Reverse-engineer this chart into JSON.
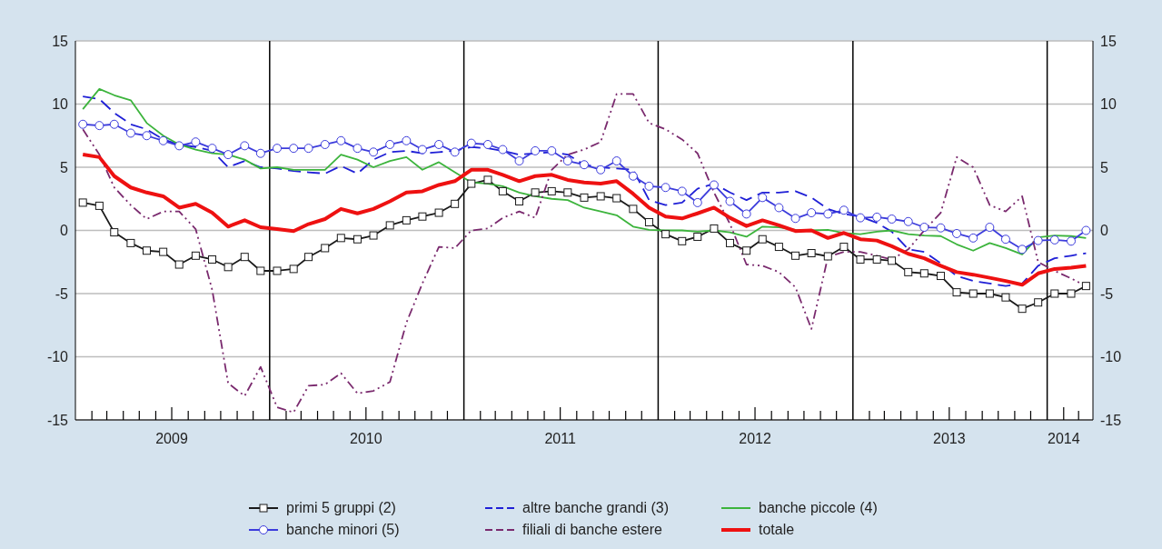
{
  "chart_data": {
    "type": "line",
    "x": [
      "2009-01-15",
      "2009-02-15",
      "2009-03-15",
      "2009-04-15",
      "2009-05-15",
      "2009-06-15",
      "2009-07-15",
      "2009-08-15",
      "2009-09-15",
      "2009-10-15",
      "2009-11-15",
      "2009-12-15",
      "2010-01-15",
      "2010-02-15",
      "2010-03-15",
      "2010-04-15",
      "2010-05-15",
      "2010-06-15",
      "2010-07-15",
      "2010-08-15",
      "2010-09-15",
      "2010-10-15",
      "2010-11-15",
      "2010-12-15",
      "2011-01-15",
      "2011-02-15",
      "2011-03-15",
      "2011-04-15",
      "2011-05-15",
      "2011-06-15",
      "2011-07-15",
      "2011-08-15",
      "2011-09-15",
      "2011-10-15",
      "2011-11-15",
      "2011-12-15",
      "2012-01-15",
      "2012-02-15",
      "2012-03-15",
      "2012-04-15",
      "2012-05-15",
      "2012-06-15",
      "2012-07-15",
      "2012-08-15",
      "2012-09-15",
      "2012-10-15",
      "2012-11-15",
      "2012-12-15",
      "2013-01-15",
      "2013-02-15",
      "2013-03-15",
      "2013-04-15",
      "2013-05-15",
      "2013-06-15",
      "2013-07-15",
      "2013-08-15",
      "2013-09-15",
      "2013-10-15",
      "2013-11-15",
      "2013-12-15",
      "2014-01-15",
      "2014-02-15",
      "2014-03-15"
    ],
    "series": [
      {
        "name": "primi 5 gruppi (2)",
        "color": "#1a1a1a",
        "marker": "square",
        "line_style": "solid",
        "values": [
          2.2,
          1.95,
          -0.15,
          -1.0,
          -1.6,
          -1.7,
          -2.7,
          -2.0,
          -2.3,
          -2.9,
          -2.1,
          -3.2,
          -3.2,
          -3.05,
          -2.1,
          -1.4,
          -0.6,
          -0.7,
          -0.4,
          0.4,
          0.8,
          1.1,
          1.4,
          2.1,
          3.7,
          4.0,
          3.1,
          2.3,
          3.0,
          3.1,
          3.0,
          2.6,
          2.7,
          2.55,
          1.7,
          0.65,
          -0.3,
          -0.85,
          -0.5,
          0.15,
          -1.0,
          -1.6,
          -0.7,
          -1.3,
          -2.0,
          -1.8,
          -2.05,
          -1.3,
          -2.3,
          -2.3,
          -2.4,
          -3.3,
          -3.4,
          -3.6,
          -4.9,
          -5.0,
          -5.0,
          -5.3,
          -6.2,
          -5.7,
          -5.0,
          -5.0,
          -4.4
        ]
      },
      {
        "name": "altre banche grandi (3)",
        "color": "#1f1fd6",
        "marker": "none",
        "line_style": "dashed",
        "values": [
          10.6,
          10.4,
          9.3,
          8.4,
          8.0,
          7.2,
          6.8,
          6.6,
          6.3,
          5.0,
          5.5,
          5.0,
          4.9,
          4.7,
          4.6,
          4.5,
          5.1,
          4.5,
          5.6,
          6.2,
          6.3,
          6.1,
          6.2,
          6.3,
          6.6,
          6.5,
          6.3,
          6.0,
          6.1,
          6.2,
          6.0,
          5.2,
          5.0,
          4.9,
          4.8,
          2.4,
          2.0,
          2.2,
          3.3,
          3.7,
          3.0,
          2.4,
          3.0,
          3.0,
          3.1,
          2.6,
          1.7,
          1.3,
          1.1,
          0.6,
          -0.1,
          -1.5,
          -1.7,
          -2.6,
          -3.6,
          -4.0,
          -4.2,
          -4.4,
          -4.2,
          -2.8,
          -2.2,
          -2.0,
          -1.8
        ]
      },
      {
        "name": "banche piccole (4)",
        "color": "#3cb43c",
        "marker": "none",
        "line_style": "solid",
        "values": [
          9.6,
          11.2,
          10.7,
          10.3,
          8.5,
          7.5,
          6.8,
          6.4,
          6.1,
          6.0,
          5.6,
          4.9,
          5.0,
          4.8,
          4.8,
          4.8,
          6.0,
          5.6,
          5.0,
          5.5,
          5.8,
          4.8,
          5.4,
          4.6,
          3.8,
          3.7,
          3.5,
          3.0,
          2.7,
          2.5,
          2.4,
          1.8,
          1.5,
          1.2,
          0.3,
          0.05,
          0.0,
          0.0,
          -0.1,
          0.0,
          -0.15,
          -0.5,
          0.3,
          0.25,
          0.05,
          0.0,
          0.05,
          -0.2,
          -0.3,
          -0.1,
          0.0,
          -0.3,
          -0.4,
          -0.45,
          -1.1,
          -1.6,
          -1.0,
          -1.4,
          -1.9,
          -0.55,
          -0.4,
          -0.45,
          -0.6
        ]
      },
      {
        "name": "banche minori (5)",
        "color": "#3c3cdc",
        "marker": "circle",
        "line_style": "solid",
        "values": [
          8.4,
          8.3,
          8.4,
          7.7,
          7.5,
          7.1,
          6.7,
          7.0,
          6.5,
          6.0,
          6.7,
          6.1,
          6.5,
          6.5,
          6.5,
          6.8,
          7.1,
          6.5,
          6.2,
          6.8,
          7.1,
          6.4,
          6.8,
          6.2,
          6.9,
          6.8,
          6.4,
          5.5,
          6.3,
          6.3,
          5.5,
          5.2,
          4.8,
          5.5,
          4.3,
          3.5,
          3.4,
          3.1,
          2.2,
          3.6,
          2.3,
          1.3,
          2.6,
          1.8,
          0.95,
          1.4,
          1.3,
          1.6,
          1.0,
          1.05,
          0.9,
          0.7,
          0.25,
          0.2,
          -0.25,
          -0.6,
          0.25,
          -0.7,
          -1.5,
          -0.8,
          -0.75,
          -0.85,
          0.0
        ]
      },
      {
        "name": "filiali di banche estere",
        "color": "#7a2a6e",
        "marker": "none",
        "line_style": "dotted",
        "values": [
          8.0,
          6.0,
          3.4,
          2.0,
          0.9,
          1.5,
          1.5,
          0.1,
          -4.7,
          -12.1,
          -13.1,
          -10.8,
          -14.0,
          -14.4,
          -12.3,
          -12.2,
          -11.3,
          -12.9,
          -12.7,
          -12.0,
          -7.3,
          -4.2,
          -1.3,
          -1.4,
          0.0,
          0.15,
          1.0,
          1.5,
          1.0,
          4.8,
          6.0,
          6.4,
          7.0,
          10.8,
          10.8,
          8.5,
          8.0,
          7.2,
          6.1,
          3.0,
          0.5,
          -2.7,
          -2.8,
          -3.3,
          -4.5,
          -7.8,
          -2.1,
          -1.7,
          -1.7,
          -2.0,
          -2.3,
          -1.5,
          0.0,
          1.4,
          5.8,
          5.0,
          2.0,
          1.5,
          2.7,
          -2.5,
          -3.2,
          -3.8,
          -4.4
        ]
      },
      {
        "name": "totale",
        "color": "#ee1111",
        "marker": "none",
        "line_style": "solid",
        "values": [
          6.0,
          5.8,
          4.3,
          3.4,
          3.0,
          2.7,
          1.8,
          2.1,
          1.4,
          0.3,
          0.8,
          0.25,
          0.1,
          -0.05,
          0.5,
          0.9,
          1.7,
          1.35,
          1.7,
          2.3,
          3.0,
          3.1,
          3.6,
          3.9,
          4.8,
          4.8,
          4.4,
          3.9,
          4.3,
          4.4,
          4.0,
          3.8,
          3.7,
          3.9,
          2.9,
          1.8,
          1.1,
          0.95,
          1.35,
          1.8,
          1.0,
          0.35,
          0.8,
          0.4,
          -0.05,
          0.0,
          -0.6,
          -0.2,
          -0.7,
          -0.8,
          -1.25,
          -1.85,
          -2.2,
          -2.8,
          -3.3,
          -3.5,
          -3.75,
          -4.0,
          -4.3,
          -3.4,
          -3.05,
          -2.95,
          -2.8
        ]
      }
    ],
    "xlim": [
      "2009-01-01",
      "2014-03-28"
    ],
    "xticks": [
      {
        "value": "2009-02-01",
        "label": null
      },
      {
        "value": "2009-03-01",
        "label": null
      },
      {
        "value": "2009-04-01",
        "label": null
      },
      {
        "value": "2009-05-01",
        "label": null
      },
      {
        "value": "2009-06-01",
        "label": null
      },
      {
        "value": "2009-07-01",
        "label": "2009"
      },
      {
        "value": "2009-08-01",
        "label": null
      },
      {
        "value": "2009-09-01",
        "label": null
      },
      {
        "value": "2009-10-01",
        "label": null
      },
      {
        "value": "2009-11-01",
        "label": null
      },
      {
        "value": "2009-12-01",
        "label": null
      },
      {
        "value": "2010-02-01",
        "label": null
      },
      {
        "value": "2010-03-01",
        "label": null
      },
      {
        "value": "2010-04-01",
        "label": null
      },
      {
        "value": "2010-05-01",
        "label": null
      },
      {
        "value": "2010-06-01",
        "label": null
      },
      {
        "value": "2010-07-01",
        "label": "2010"
      },
      {
        "value": "2010-08-01",
        "label": null
      },
      {
        "value": "2010-09-01",
        "label": null
      },
      {
        "value": "2010-10-01",
        "label": null
      },
      {
        "value": "2010-11-01",
        "label": null
      },
      {
        "value": "2010-12-01",
        "label": null
      },
      {
        "value": "2011-02-01",
        "label": null
      },
      {
        "value": "2011-03-01",
        "label": null
      },
      {
        "value": "2011-04-01",
        "label": null
      },
      {
        "value": "2011-05-01",
        "label": null
      },
      {
        "value": "2011-06-01",
        "label": null
      },
      {
        "value": "2011-07-01",
        "label": "2011"
      },
      {
        "value": "2011-08-01",
        "label": null
      },
      {
        "value": "2011-09-01",
        "label": null
      },
      {
        "value": "2011-10-01",
        "label": null
      },
      {
        "value": "2011-11-01",
        "label": null
      },
      {
        "value": "2011-12-01",
        "label": null
      },
      {
        "value": "2012-02-01",
        "label": null
      },
      {
        "value": "2012-03-01",
        "label": null
      },
      {
        "value": "2012-04-01",
        "label": null
      },
      {
        "value": "2012-05-01",
        "label": null
      },
      {
        "value": "2012-06-01",
        "label": null
      },
      {
        "value": "2012-07-01",
        "label": "2012"
      },
      {
        "value": "2012-08-01",
        "label": null
      },
      {
        "value": "2012-09-01",
        "label": null
      },
      {
        "value": "2012-10-01",
        "label": null
      },
      {
        "value": "2012-11-01",
        "label": null
      },
      {
        "value": "2012-12-01",
        "label": null
      },
      {
        "value": "2013-02-01",
        "label": null
      },
      {
        "value": "2013-03-01",
        "label": null
      },
      {
        "value": "2013-04-01",
        "label": null
      },
      {
        "value": "2013-05-01",
        "label": null
      },
      {
        "value": "2013-06-01",
        "label": null
      },
      {
        "value": "2013-07-01",
        "label": "2013"
      },
      {
        "value": "2013-08-01",
        "label": null
      },
      {
        "value": "2013-09-01",
        "label": null
      },
      {
        "value": "2013-10-01",
        "label": null
      },
      {
        "value": "2013-11-01",
        "label": null
      },
      {
        "value": "2013-12-01",
        "label": null
      },
      {
        "value": "2014-02-01",
        "label": "2014"
      },
      {
        "value": "2014-03-01",
        "label": null
      }
    ],
    "ref_lines": [
      {
        "axis": "x",
        "value": "2010-01-01",
        "color": "#000000"
      },
      {
        "axis": "x",
        "value": "2011-01-01",
        "color": "#000000"
      },
      {
        "axis": "x",
        "value": "2012-01-01",
        "color": "#000000"
      },
      {
        "axis": "x",
        "value": "2013-01-01",
        "color": "#000000"
      },
      {
        "axis": "x",
        "value": "2014-01-01",
        "color": "#000000"
      }
    ],
    "ylim": [
      -15,
      15
    ],
    "yticks": [
      -15,
      -10,
      -5,
      0,
      5,
      10,
      15
    ],
    "y2lim": [
      -15,
      15
    ],
    "y2ticks": [
      -15,
      -10,
      -5,
      0,
      5,
      10,
      15
    ],
    "grid": "y",
    "legend": "bottom"
  }
}
